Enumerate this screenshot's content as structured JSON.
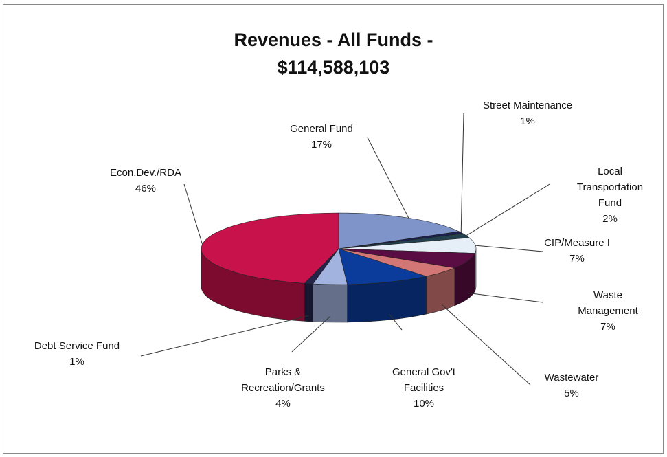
{
  "chart_data": {
    "type": "pie3d",
    "title": "Revenues - All Funds -\n$114,588,103",
    "categories": [
      "General Fund",
      "Street Maintenance",
      "Local\nTransportation Fund",
      "CIP/Measure I",
      "Waste Management",
      "Wastewater",
      "General Gov't\nFacilities",
      "Parks &\nRecreation/Grants",
      "Debt Service Fund",
      "Econ.Dev./RDA"
    ],
    "values": [
      17,
      1,
      2,
      7,
      7,
      5,
      10,
      4,
      1,
      46
    ],
    "value_labels": [
      "17%",
      "1%",
      "2%",
      "7%",
      "7%",
      "5%",
      "10%",
      "4%",
      "1%",
      "46%"
    ],
    "colors": [
      "#7f95c9",
      "#1b1f4f",
      "#23404e",
      "#e6eef8",
      "#5a0d42",
      "#d27676",
      "#0b3c9c",
      "#a3b3df",
      "#24234a",
      "#c8124c"
    ]
  }
}
